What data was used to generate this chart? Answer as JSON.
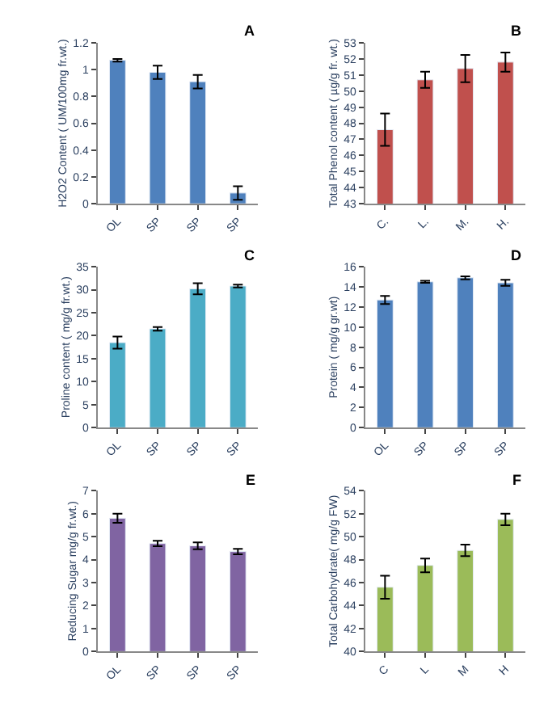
{
  "chart_data": [
    {
      "type": "bar",
      "title": "A",
      "ylabel": "H2O2 Content ( UM/100mg fr.wt.)",
      "categories": [
        "OL",
        "SP",
        "SP",
        "SP"
      ],
      "values": [
        1.07,
        0.98,
        0.91,
        0.08
      ],
      "errors": [
        0.01,
        0.05,
        0.05,
        0.05
      ],
      "color": "#4f81bd",
      "ylim": [
        0,
        1.2
      ],
      "yticks": [
        0,
        0.2,
        0.4,
        0.6,
        0.8,
        1,
        1.2
      ]
    },
    {
      "type": "bar",
      "title": "B",
      "ylabel": "Total Phenol content ( µg/g fr. wt.)",
      "categories": [
        "C.",
        "L.",
        "M.",
        "H."
      ],
      "values": [
        47.6,
        50.7,
        51.4,
        51.8
      ],
      "errors": [
        1.0,
        0.5,
        0.85,
        0.6
      ],
      "color": "#c0504d",
      "ylim": [
        43,
        53
      ],
      "yticks": [
        43,
        44,
        45,
        46,
        47,
        48,
        49,
        50,
        51,
        52,
        53
      ]
    },
    {
      "type": "bar",
      "title": "C",
      "ylabel": "Proline content ( mg/g fr.wt.)",
      "categories": [
        "OL",
        "SP",
        "SP",
        "SP"
      ],
      "values": [
        18.5,
        21.5,
        30.2,
        30.8
      ],
      "errors": [
        1.3,
        0.4,
        1.2,
        0.3
      ],
      "color": "#4bacc6",
      "ylim": [
        0,
        35
      ],
      "yticks": [
        0,
        5,
        10,
        15,
        20,
        25,
        30,
        35
      ]
    },
    {
      "type": "bar",
      "title": "D",
      "ylabel": "Protein ( mg/g gr.wt)",
      "categories": [
        "OL",
        "SP",
        "SP",
        "SP"
      ],
      "values": [
        12.7,
        14.5,
        14.9,
        14.4
      ],
      "errors": [
        0.4,
        0.1,
        0.15,
        0.3
      ],
      "color": "#4f81bd",
      "ylim": [
        0,
        16
      ],
      "yticks": [
        0,
        2,
        4,
        6,
        8,
        10,
        12,
        14,
        16
      ]
    },
    {
      "type": "bar",
      "title": "E",
      "ylabel": "Reducing Sugar mg/g fr.wt.)",
      "categories": [
        "OL",
        "SP",
        "SP",
        "SP"
      ],
      "values": [
        5.8,
        4.7,
        4.6,
        4.35
      ],
      "errors": [
        0.2,
        0.12,
        0.15,
        0.12
      ],
      "color": "#8064a2",
      "ylim": [
        0,
        7
      ],
      "yticks": [
        0,
        1,
        2,
        3,
        4,
        5,
        6,
        7
      ]
    },
    {
      "type": "bar",
      "title": "F",
      "ylabel": "Total Carbohydrate( mg/g FW)",
      "categories": [
        "C",
        "L",
        "M",
        "H"
      ],
      "values": [
        45.6,
        47.5,
        48.8,
        51.5
      ],
      "errors": [
        1.0,
        0.6,
        0.5,
        0.5
      ],
      "color": "#9bbb59",
      "ylim": [
        40,
        54
      ],
      "yticks": [
        40,
        42,
        44,
        46,
        48,
        50,
        52,
        54
      ]
    }
  ]
}
